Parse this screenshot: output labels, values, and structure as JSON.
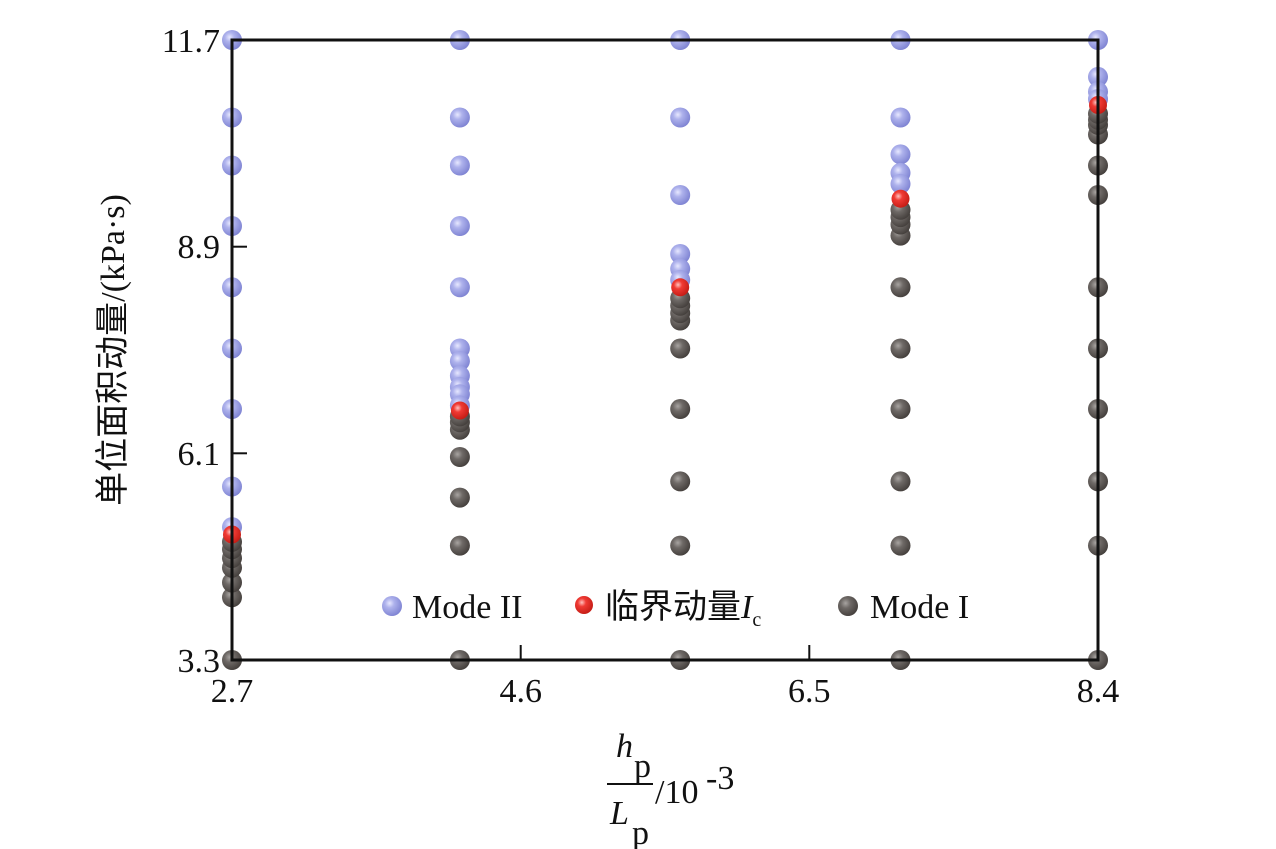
{
  "chart_data": {
    "type": "scatter",
    "title": "",
    "xlabel": {
      "numerator": "h",
      "numerator_sub": "p",
      "denominator": "L",
      "denominator_sub": "p",
      "suffix": "/10",
      "exponent": "-3"
    },
    "ylabel": "单位面积动量/(kPa·s)",
    "xlim": [
      2.7,
      8.4
    ],
    "ylim": [
      3.3,
      11.7
    ],
    "xticks": [
      "2.7",
      "4.6",
      "6.5",
      "8.4"
    ],
    "yticks": [
      "3.3",
      "6.1",
      "8.9",
      "11.7"
    ],
    "grid": false,
    "legend_position": "bottom-center",
    "series": [
      {
        "name": "Mode II",
        "color": "#9a9ee0",
        "points": [
          [
            2.7,
            11.7
          ],
          [
            2.7,
            10.65
          ],
          [
            2.7,
            10.0
          ],
          [
            2.7,
            9.18
          ],
          [
            2.7,
            8.35
          ],
          [
            2.7,
            7.52
          ],
          [
            2.7,
            6.7
          ],
          [
            2.7,
            5.65
          ],
          [
            2.7,
            5.1
          ],
          [
            4.2,
            11.7
          ],
          [
            4.2,
            10.65
          ],
          [
            4.2,
            10.0
          ],
          [
            4.2,
            9.18
          ],
          [
            4.2,
            8.35
          ],
          [
            4.2,
            7.52
          ],
          [
            4.2,
            7.35
          ],
          [
            4.2,
            7.15
          ],
          [
            4.2,
            7.0
          ],
          [
            4.2,
            6.9
          ],
          [
            4.2,
            6.75
          ],
          [
            5.65,
            11.7
          ],
          [
            5.65,
            10.65
          ],
          [
            5.65,
            9.6
          ],
          [
            5.65,
            8.8
          ],
          [
            5.65,
            8.6
          ],
          [
            5.65,
            8.45
          ],
          [
            7.1,
            11.7
          ],
          [
            7.1,
            10.65
          ],
          [
            7.1,
            10.15
          ],
          [
            7.1,
            9.9
          ],
          [
            7.1,
            9.75
          ],
          [
            8.4,
            11.7
          ],
          [
            8.4,
            11.2
          ],
          [
            8.4,
            11.0
          ],
          [
            8.4,
            10.9
          ]
        ]
      },
      {
        "name": "临界动量",
        "name_symbol": "I",
        "name_sub": "c",
        "color": "#e52b24",
        "points": [
          [
            2.7,
            5.0
          ],
          [
            4.2,
            6.68
          ],
          [
            5.65,
            8.35
          ],
          [
            7.1,
            9.55
          ],
          [
            8.4,
            10.82
          ]
        ]
      },
      {
        "name": "Mode I",
        "color": "#6b6562",
        "points": [
          [
            2.7,
            3.3
          ],
          [
            2.7,
            4.15
          ],
          [
            2.7,
            4.35
          ],
          [
            2.7,
            4.55
          ],
          [
            2.7,
            4.68
          ],
          [
            2.7,
            4.8
          ],
          [
            2.7,
            4.9
          ],
          [
            4.2,
            3.3
          ],
          [
            4.2,
            4.85
          ],
          [
            4.2,
            5.5
          ],
          [
            4.2,
            6.05
          ],
          [
            4.2,
            6.42
          ],
          [
            4.2,
            6.52
          ],
          [
            4.2,
            6.6
          ],
          [
            5.65,
            3.3
          ],
          [
            5.65,
            4.85
          ],
          [
            5.65,
            5.72
          ],
          [
            5.65,
            6.7
          ],
          [
            5.65,
            7.52
          ],
          [
            5.65,
            7.9
          ],
          [
            5.65,
            8.0
          ],
          [
            5.65,
            8.1
          ],
          [
            5.65,
            8.2
          ],
          [
            7.1,
            3.3
          ],
          [
            7.1,
            4.85
          ],
          [
            7.1,
            5.72
          ],
          [
            7.1,
            6.7
          ],
          [
            7.1,
            7.52
          ],
          [
            7.1,
            8.35
          ],
          [
            7.1,
            9.05
          ],
          [
            7.1,
            9.2
          ],
          [
            7.1,
            9.3
          ],
          [
            7.1,
            9.4
          ],
          [
            8.4,
            3.3
          ],
          [
            8.4,
            4.85
          ],
          [
            8.4,
            5.72
          ],
          [
            8.4,
            6.7
          ],
          [
            8.4,
            7.52
          ],
          [
            8.4,
            8.35
          ],
          [
            8.4,
            9.6
          ],
          [
            8.4,
            10.0
          ],
          [
            8.4,
            10.42
          ],
          [
            8.4,
            10.55
          ],
          [
            8.4,
            10.62
          ],
          [
            8.4,
            10.7
          ]
        ]
      }
    ]
  }
}
